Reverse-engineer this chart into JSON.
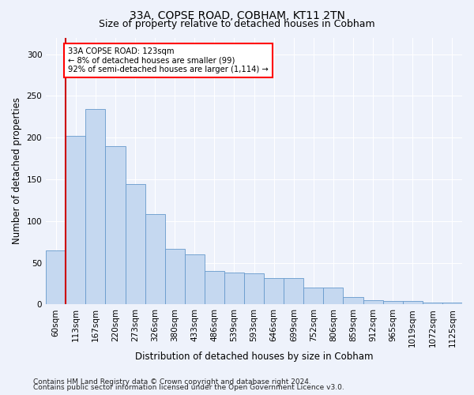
{
  "title1": "33A, COPSE ROAD, COBHAM, KT11 2TN",
  "title2": "Size of property relative to detached houses in Cobham",
  "xlabel": "Distribution of detached houses by size in Cobham",
  "ylabel": "Number of detached properties",
  "categories": [
    "60sqm",
    "113sqm",
    "167sqm",
    "220sqm",
    "273sqm",
    "326sqm",
    "380sqm",
    "433sqm",
    "486sqm",
    "539sqm",
    "593sqm",
    "646sqm",
    "699sqm",
    "752sqm",
    "806sqm",
    "859sqm",
    "912sqm",
    "965sqm",
    "1019sqm",
    "1072sqm",
    "1125sqm"
  ],
  "values": [
    65,
    202,
    234,
    190,
    144,
    108,
    67,
    60,
    40,
    38,
    37,
    32,
    32,
    20,
    20,
    9,
    5,
    4,
    4,
    2,
    2
  ],
  "bar_color": "#c5d8f0",
  "bar_edgecolor": "#6699cc",
  "vline_x": 0.5,
  "vline_color": "#cc0000",
  "annotation_text": "33A COPSE ROAD: 123sqm\n← 8% of detached houses are smaller (99)\n92% of semi-detached houses are larger (1,114) →",
  "ylim": [
    0,
    320
  ],
  "yticks": [
    0,
    50,
    100,
    150,
    200,
    250,
    300
  ],
  "footnote1": "Contains HM Land Registry data © Crown copyright and database right 2024.",
  "footnote2": "Contains public sector information licensed under the Open Government Licence v3.0.",
  "background_color": "#eef2fb",
  "plot_background": "#eef2fb",
  "grid_color": "#ffffff",
  "title_fontsize": 10,
  "subtitle_fontsize": 9,
  "axis_label_fontsize": 8.5,
  "tick_fontsize": 7.5,
  "footnote_fontsize": 6.5
}
